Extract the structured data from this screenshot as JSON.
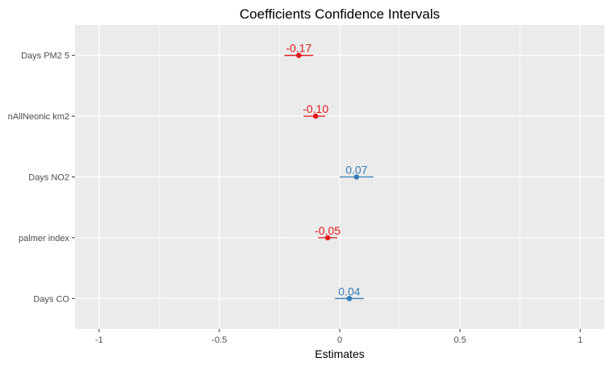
{
  "chart_data": {
    "type": "dot-whisker",
    "title": "Coefficients Confidence Intervals",
    "xlabel": "Estimates",
    "ylabel": "",
    "xlim": [
      -1.1,
      1.1
    ],
    "x_ticks": [
      {
        "value": -1,
        "label": "-1"
      },
      {
        "value": -0.5,
        "label": "-0.5"
      },
      {
        "value": 0,
        "label": "0"
      },
      {
        "value": 0.5,
        "label": "0.5"
      },
      {
        "value": 1,
        "label": "1"
      }
    ],
    "grid": true,
    "colors": {
      "negative": "#e41a1c",
      "positive": "#377eb8",
      "panel": "#ebebeb",
      "grid": "#ffffff",
      "text": "#4d4d4d"
    },
    "terms": [
      {
        "term": "Days PM2 5",
        "estimate": -0.17,
        "ci_low": -0.23,
        "ci_high": -0.11,
        "label": "-0.17"
      },
      {
        "term": "nAllNeonic km2",
        "estimate": -0.1,
        "ci_low": -0.15,
        "ci_high": -0.06,
        "label": "-0.10"
      },
      {
        "term": "Days NO2",
        "estimate": 0.07,
        "ci_low": 0.0,
        "ci_high": 0.14,
        "label": "0.07"
      },
      {
        "term": "palmer index",
        "estimate": -0.05,
        "ci_low": -0.09,
        "ci_high": -0.01,
        "label": "-0.05"
      },
      {
        "term": "Days CO",
        "estimate": 0.04,
        "ci_low": -0.02,
        "ci_high": 0.1,
        "label": "0.04"
      }
    ]
  }
}
